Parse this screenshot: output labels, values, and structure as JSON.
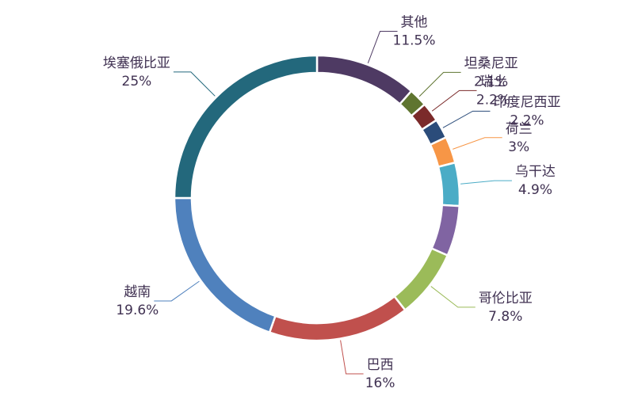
{
  "chart_data": {
    "type": "donut",
    "categories": [
      "其他",
      "坦桑尼亚",
      "瑞士",
      "印度尼西亚",
      "荷兰",
      "乌干达",
      null,
      "哥伦比亚",
      "巴西",
      "越南",
      "埃塞俄比亚"
    ],
    "values": [
      11.5,
      2.1,
      2.2,
      2.2,
      3,
      4.9,
      5.7,
      7.8,
      16,
      19.6,
      25
    ],
    "value_labels": [
      "11.5%",
      "2.1%",
      "2.2%",
      "2.2%",
      "3%",
      "4.9%",
      null,
      "7.8%",
      "16%",
      "19.6%",
      "25%"
    ],
    "colors": [
      "#4e3a63",
      "#5f7530",
      "#7b2a2a",
      "#2b4c7a",
      "#f79646",
      "#4bacc6",
      "#8064a2",
      "#9bbb59",
      "#c0504d",
      "#4f81bd",
      "#23687c"
    ]
  }
}
